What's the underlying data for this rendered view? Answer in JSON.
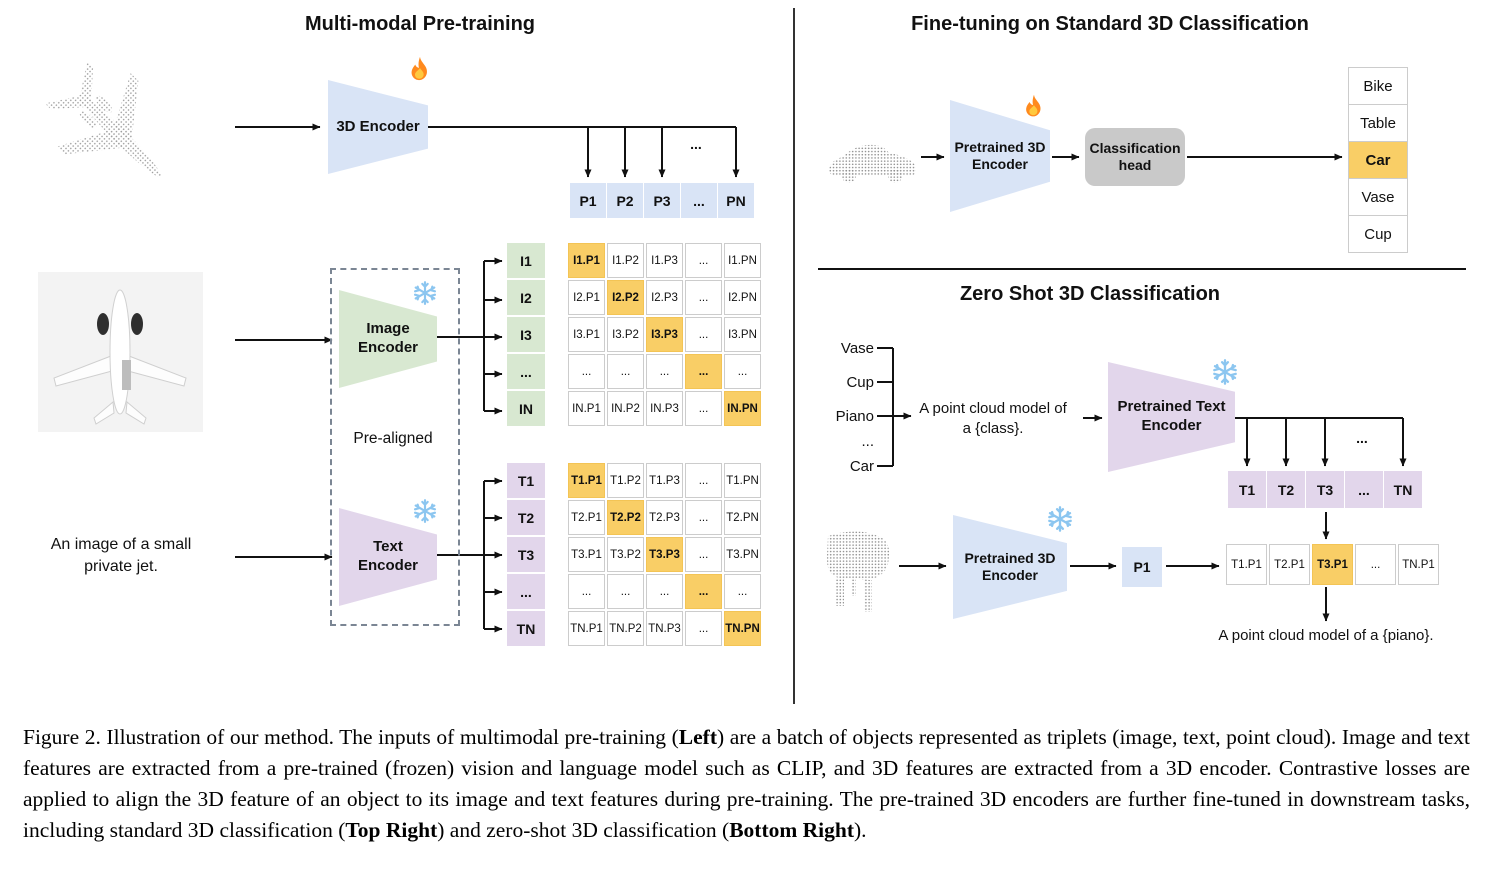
{
  "panels": {
    "pretraining": {
      "title": "Multi-modal Pre-training",
      "encoder3d_label": "3D Encoder",
      "encoder3d_state_icon": "flame-icon",
      "image_encoder_label": "Image\nEncoder",
      "image_encoder_state_icon": "snowflake-icon",
      "text_encoder_label": "Text\nEncoder",
      "text_encoder_state_icon": "snowflake-icon",
      "prealigned_label": "Pre-aligned",
      "image_caption": "An image of a small\nprivate jet.",
      "p_row": [
        "P1",
        "P2",
        "P3",
        "...",
        "PN"
      ],
      "branch_dots": "...",
      "image_rows": [
        "I1",
        "I2",
        "I3",
        "...",
        "IN"
      ],
      "image_matrix": [
        [
          "I1.P1",
          "I1.P2",
          "I1.P3",
          "...",
          "I1.PN"
        ],
        [
          "I2.P1",
          "I2.P2",
          "I2.P3",
          "...",
          "I2.PN"
        ],
        [
          "I3.P1",
          "I3.P2",
          "I3.P3",
          "...",
          "I3.PN"
        ],
        [
          "...",
          "...",
          "...",
          "...",
          "..."
        ],
        [
          "IN.P1",
          "IN.P2",
          "IN.P3",
          "...",
          "IN.PN"
        ]
      ],
      "text_rows": [
        "T1",
        "T2",
        "T3",
        "...",
        "TN"
      ],
      "text_matrix": [
        [
          "T1.P1",
          "T1.P2",
          "T1.P3",
          "...",
          "T1.PN"
        ],
        [
          "T2.P1",
          "T2.P2",
          "T2.P3",
          "...",
          "T2.PN"
        ],
        [
          "T3.P1",
          "T3.P2",
          "T3.P3",
          "...",
          "T3.PN"
        ],
        [
          "...",
          "...",
          "...",
          "...",
          "..."
        ],
        [
          "TN.P1",
          "TN.P2",
          "TN.P3",
          "...",
          "TN.PN"
        ]
      ]
    },
    "finetune": {
      "title": "Fine-tuning on Standard 3D Classification",
      "encoder_label": "Pretrained 3D\nEncoder",
      "encoder_state_icon": "flame-icon",
      "head_label": "Classification\nhead",
      "classes": [
        "Bike",
        "Table",
        "Car",
        "Vase",
        "Cup"
      ],
      "predicted_class": "Car"
    },
    "zeroshot": {
      "title": "Zero Shot 3D Classification",
      "class_list": [
        "Vase",
        "Cup",
        "Piano",
        "...",
        "Car"
      ],
      "prompt": "A point cloud model of\na {class}.",
      "text_encoder_label": "Pretrained Text\nEncoder",
      "text_encoder_state_icon": "snowflake-icon",
      "encoder3d_label": "Pretrained 3D\nEncoder",
      "encoder3d_state_icon": "snowflake-icon",
      "p_cell": "P1",
      "branch_dots": "...",
      "t_row": [
        "T1",
        "T2",
        "T3",
        "...",
        "TN"
      ],
      "tp_row": [
        "T1.P1",
        "T2.P1",
        "T3.P1",
        "...",
        "TN.P1"
      ],
      "tp_highlight_index": 2,
      "result_text": "A point cloud model of a {piano}."
    }
  },
  "caption": {
    "segments": [
      {
        "text": "Figure 2. Illustration of our method.  The inputs of multimodal pre-training (",
        "bold": false
      },
      {
        "text": "Left",
        "bold": true
      },
      {
        "text": ") are a batch of objects represented as triplets (image, text, point cloud).  Image and text features are extracted from a pre-trained (frozen) vision and language model such as CLIP, and 3D features are extracted from a 3D encoder.  Contrastive losses are applied to align the 3D feature of an object to its image and text features during pre-training.  The pre-trained 3D encoders are further fine-tuned in downstream tasks, including standard 3D classification (",
        "bold": false
      },
      {
        "text": "Top Right",
        "bold": true
      },
      {
        "text": ") and zero-shot 3D classification (",
        "bold": false
      },
      {
        "text": "Bottom Right",
        "bold": true
      },
      {
        "text": ").",
        "bold": false
      }
    ]
  },
  "colors": {
    "feature_blue": "#D9E4F6",
    "image_green": "#D8E8D1",
    "text_purple": "#E2D6EB",
    "highlight_orange": "#F9CE66",
    "head_gray": "#C9C9C9",
    "cell_border": "#CCCCCC",
    "flame_orange": "#FF8A1E",
    "snowflake_blue": "#8CC6F0"
  }
}
